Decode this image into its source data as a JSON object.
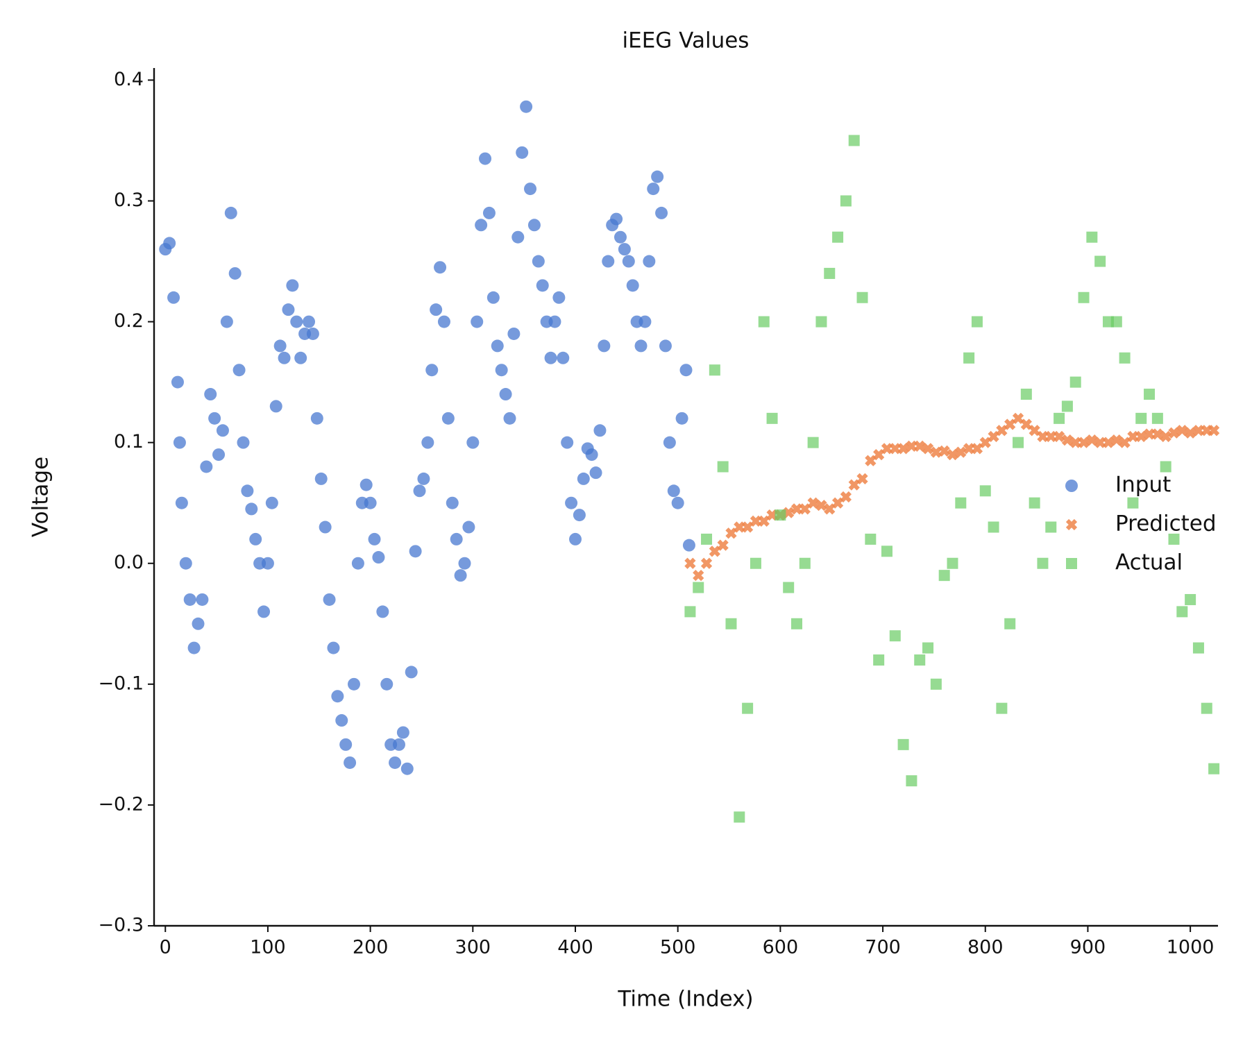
{
  "chart_data": {
    "type": "scatter",
    "title": "iEEG Values",
    "x_label": "Time (Index)",
    "y_label": "Voltage",
    "xlim": [
      -11,
      1027
    ],
    "ylim": [
      -0.3,
      0.41
    ],
    "xticks": [
      0,
      100,
      200,
      300,
      400,
      500,
      600,
      700,
      800,
      900,
      1000
    ],
    "yticks": [
      {
        "value": -0.3,
        "label": "−0.3"
      },
      {
        "value": -0.2,
        "label": "−0.2"
      },
      {
        "value": -0.1,
        "label": "−0.1"
      },
      {
        "value": 0,
        "label": "0.0"
      },
      0.1,
      0.2,
      0.3,
      0.4
    ],
    "series": [
      {
        "name": "Input",
        "color": "#4878d0",
        "marker": "circle",
        "x": [
          0,
          4,
          8,
          12,
          14,
          16,
          20,
          24,
          28,
          32,
          36,
          40,
          44,
          48,
          52,
          56,
          60,
          64,
          68,
          72,
          76,
          80,
          84,
          88,
          92,
          96,
          100,
          104,
          108,
          112,
          116,
          120,
          124,
          128,
          132,
          136,
          140,
          144,
          148,
          152,
          156,
          160,
          164,
          168,
          172,
          176,
          180,
          184,
          188,
          192,
          196,
          200,
          204,
          208,
          212,
          216,
          220,
          224,
          228,
          232,
          236,
          240,
          244,
          248,
          252,
          256,
          260,
          264,
          268,
          272,
          276,
          280,
          284,
          288,
          292,
          296,
          300,
          304,
          308,
          312,
          316,
          320,
          324,
          328,
          332,
          336,
          340,
          344,
          348,
          352,
          356,
          360,
          364,
          368,
          372,
          376,
          380,
          384,
          388,
          392,
          396,
          400,
          404,
          408,
          412,
          416,
          420,
          424,
          428,
          432,
          436,
          440,
          444,
          448,
          452,
          456,
          460,
          464,
          468,
          472,
          476,
          480,
          484,
          488,
          492,
          496,
          500,
          504,
          508,
          511
        ],
        "values": [
          0.26,
          0.265,
          0.22,
          0.15,
          0.1,
          0.05,
          0.0,
          -0.03,
          -0.07,
          -0.05,
          -0.03,
          0.08,
          0.14,
          0.12,
          0.09,
          0.11,
          0.2,
          0.29,
          0.24,
          0.16,
          0.1,
          0.06,
          0.045,
          0.02,
          0.0,
          -0.04,
          0.0,
          0.05,
          0.13,
          0.18,
          0.17,
          0.21,
          0.23,
          0.2,
          0.17,
          0.19,
          0.2,
          0.19,
          0.12,
          0.07,
          0.03,
          -0.03,
          -0.07,
          -0.11,
          -0.13,
          -0.15,
          -0.165,
          -0.1,
          0.0,
          0.05,
          0.065,
          0.05,
          0.02,
          0.005,
          -0.04,
          -0.1,
          -0.15,
          -0.165,
          -0.15,
          -0.14,
          -0.17,
          -0.09,
          0.01,
          0.06,
          0.07,
          0.1,
          0.16,
          0.21,
          0.245,
          0.2,
          0.12,
          0.05,
          0.02,
          -0.01,
          0.0,
          0.03,
          0.1,
          0.2,
          0.28,
          0.335,
          0.29,
          0.22,
          0.18,
          0.16,
          0.14,
          0.12,
          0.19,
          0.27,
          0.34,
          0.378,
          0.31,
          0.28,
          0.25,
          0.23,
          0.2,
          0.17,
          0.2,
          0.22,
          0.17,
          0.1,
          0.05,
          0.02,
          0.04,
          0.07,
          0.095,
          0.09,
          0.075,
          0.11,
          0.18,
          0.25,
          0.28,
          0.285,
          0.27,
          0.26,
          0.25,
          0.23,
          0.2,
          0.18,
          0.2,
          0.25,
          0.31,
          0.32,
          0.29,
          0.18,
          0.1,
          0.06,
          0.05,
          0.12,
          0.16,
          0.015
        ]
      },
      {
        "name": "Predicted",
        "color": "#ee854a",
        "marker": "x",
        "x": [
          512,
          520,
          528,
          536,
          544,
          552,
          560,
          568,
          576,
          584,
          592,
          600,
          608,
          616,
          624,
          632,
          640,
          648,
          656,
          664,
          672,
          680,
          688,
          696,
          704,
          712,
          720,
          728,
          736,
          744,
          752,
          760,
          768,
          776,
          784,
          792,
          800,
          808,
          816,
          824,
          832,
          840,
          848,
          856,
          864,
          872,
          880,
          888,
          896,
          904,
          912,
          920,
          928,
          936,
          944,
          952,
          960,
          968,
          976,
          984,
          992,
          1000,
          1008,
          1016,
          1023
        ],
        "values": [
          0.0,
          -0.01,
          0.0,
          0.01,
          0.015,
          0.025,
          0.03,
          0.03,
          0.035,
          0.035,
          0.04,
          0.04,
          0.042,
          0.045,
          0.045,
          0.05,
          0.048,
          0.045,
          0.05,
          0.055,
          0.065,
          0.07,
          0.085,
          0.09,
          0.095,
          0.095,
          0.095,
          0.097,
          0.097,
          0.095,
          0.092,
          0.093,
          0.09,
          0.092,
          0.095,
          0.095,
          0.1,
          0.105,
          0.11,
          0.115,
          0.12,
          0.115,
          0.11,
          0.105,
          0.105,
          0.105,
          0.102,
          0.1,
          0.1,
          0.102,
          0.1,
          0.1,
          0.102,
          0.1,
          0.105,
          0.105,
          0.107,
          0.107,
          0.105,
          0.108,
          0.11,
          0.108,
          0.11,
          0.11,
          0.11
        ]
      },
      {
        "name": "Actual",
        "color": "#6acc64",
        "marker": "square",
        "x": [
          512,
          520,
          528,
          536,
          544,
          552,
          560,
          568,
          576,
          584,
          592,
          600,
          608,
          616,
          624,
          632,
          640,
          648,
          656,
          664,
          672,
          680,
          688,
          696,
          704,
          712,
          720,
          728,
          736,
          744,
          752,
          760,
          768,
          776,
          784,
          792,
          800,
          808,
          816,
          824,
          832,
          840,
          848,
          856,
          864,
          872,
          880,
          888,
          896,
          904,
          912,
          920,
          928,
          936,
          944,
          952,
          960,
          968,
          976,
          984,
          992,
          1000,
          1008,
          1016,
          1023
        ],
        "values": [
          -0.04,
          -0.02,
          0.02,
          0.16,
          0.08,
          -0.05,
          -0.21,
          -0.12,
          0.0,
          0.2,
          0.12,
          0.04,
          -0.02,
          -0.05,
          0.0,
          0.1,
          0.2,
          0.24,
          0.27,
          0.3,
          0.35,
          0.22,
          0.02,
          -0.08,
          0.01,
          -0.06,
          -0.15,
          -0.18,
          -0.08,
          -0.07,
          -0.1,
          -0.01,
          0.0,
          0.05,
          0.17,
          0.2,
          0.06,
          0.03,
          -0.12,
          -0.05,
          0.1,
          0.14,
          0.05,
          0.0,
          0.03,
          0.12,
          0.13,
          0.15,
          0.22,
          0.27,
          0.25,
          0.2,
          0.2,
          0.17,
          0.05,
          0.12,
          0.14,
          0.12,
          0.08,
          0.02,
          -0.04,
          -0.03,
          -0.07,
          -0.12,
          -0.17
        ]
      }
    ]
  }
}
